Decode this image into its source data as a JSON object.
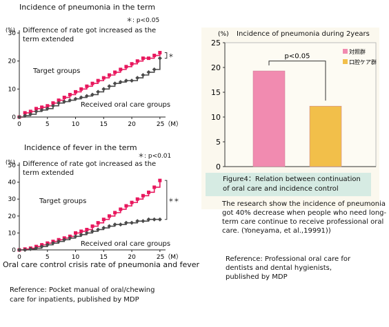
{
  "charts": {
    "pneumonia_line": {
      "title": "Incidence of pneumonia in the term",
      "ylabel": "(%)",
      "xunit": "25（M）",
      "sig": "＊: p<0.05",
      "note": "Difference of rate got increased as the term extended",
      "series1_label": "Target groups",
      "series2_label": "Received oral care groups",
      "star": "＊"
    },
    "fever_line": {
      "title": "Incidence of fever in the term",
      "ylabel": "(%)",
      "xunit": "25（M）",
      "sig": "＊: p<0.01",
      "note": "Difference of rate got increased as the term extended",
      "series1_label": "Target groups",
      "series2_label": "Received oral care groups",
      "star": "＊＊"
    },
    "bar": {
      "title": "Incidence of pneumonia during 2years",
      "ylabel": "(%)",
      "sig": "p<0.05",
      "legend1": "対照群",
      "legend2": "口腔ケア群",
      "caption": "Figure4：Relation between continuation of oral care and incidence control"
    }
  },
  "texts": {
    "crisis_caption": "Oral care control crisis rate of pneumonia and fever",
    "research": "The research show the incidence of pneumonia got 40% decrease when people who need long-term care continue to receive professional oral care. (Yoneyama, et al.,19991))",
    "reference1": "Reference: Pocket manual of oral/chewing care for inpatients, published by MDP",
    "reference2": "Reference: Professional oral care for dentists and dental hygienists, published by MDP"
  },
  "colors": {
    "target": "#e8175d",
    "care": "#4a4a4a",
    "bar_control": "#f18bb0",
    "bar_care": "#f2bf4a"
  },
  "chart_data": [
    {
      "type": "line",
      "title": "Incidence of pneumonia in the term",
      "ylabel": "(%)",
      "xlabel": "（M）",
      "xlim": [
        0,
        26
      ],
      "ylim": [
        0,
        30
      ],
      "xticks": [
        0,
        5,
        10,
        15,
        20,
        25
      ],
      "yticks": [
        0,
        10,
        20,
        30
      ],
      "series": [
        {
          "name": "Target groups",
          "x": [
            0,
            1,
            2,
            3,
            4,
            5,
            6,
            7,
            8,
            9,
            10,
            11,
            12,
            13,
            14,
            15,
            16,
            17,
            18,
            19,
            20,
            21,
            22,
            23,
            24,
            25
          ],
          "values": [
            0,
            1.5,
            2,
            3,
            3.5,
            4,
            5,
            6,
            7,
            8,
            9,
            10,
            11,
            12,
            13,
            14,
            15,
            16,
            17,
            18,
            19,
            20,
            21,
            21,
            22,
            23
          ]
        },
        {
          "name": "Received oral care groups",
          "x": [
            0,
            1,
            2,
            3,
            4,
            5,
            6,
            7,
            8,
            9,
            10,
            11,
            12,
            13,
            14,
            15,
            16,
            17,
            18,
            19,
            20,
            21,
            22,
            23,
            24,
            25
          ],
          "values": [
            0,
            0.5,
            1,
            2,
            2.5,
            3,
            4,
            5,
            5.5,
            6,
            6.5,
            7,
            7.5,
            8,
            9,
            10,
            11,
            12,
            12.5,
            13,
            13,
            14,
            15,
            16,
            17,
            21
          ]
        }
      ]
    },
    {
      "type": "line",
      "title": "Incidence of fever in the term",
      "ylabel": "(%)",
      "xlabel": "（M）",
      "xlim": [
        0,
        26
      ],
      "ylim": [
        0,
        50
      ],
      "xticks": [
        0,
        5,
        10,
        15,
        20,
        25
      ],
      "yticks": [
        0,
        10,
        20,
        30,
        40,
        50
      ],
      "series": [
        {
          "name": "Target groups",
          "x": [
            0,
            1,
            2,
            3,
            4,
            5,
            6,
            7,
            8,
            9,
            10,
            11,
            12,
            13,
            14,
            15,
            16,
            17,
            18,
            19,
            20,
            21,
            22,
            23,
            24,
            25
          ],
          "values": [
            0,
            0.5,
            1,
            2,
            3,
            4,
            5,
            6,
            7,
            8,
            10,
            11,
            12,
            14,
            16,
            18,
            20,
            22,
            24,
            26,
            28,
            30,
            32,
            34,
            37,
            41
          ]
        },
        {
          "name": "Received oral care groups",
          "x": [
            0,
            1,
            2,
            3,
            4,
            5,
            6,
            7,
            8,
            9,
            10,
            11,
            12,
            13,
            14,
            15,
            16,
            17,
            18,
            19,
            20,
            21,
            22,
            23,
            24,
            25
          ],
          "values": [
            0,
            0,
            0.5,
            1,
            2,
            3,
            4,
            5,
            6,
            7,
            8,
            9,
            10,
            11,
            12,
            13,
            14,
            15,
            15,
            16,
            16,
            17,
            17,
            18,
            18,
            18
          ]
        }
      ]
    },
    {
      "type": "bar",
      "title": "Incidence of pneumonia during 2years",
      "ylabel": "(%)",
      "categories": [
        "対照群",
        "口腔ケア群"
      ],
      "values": [
        19.3,
        12.2
      ],
      "ylim": [
        0,
        25
      ],
      "yticks": [
        0,
        5,
        10,
        15,
        20,
        25
      ],
      "annotation": "p<0.05",
      "legend_position": "top-right"
    }
  ]
}
